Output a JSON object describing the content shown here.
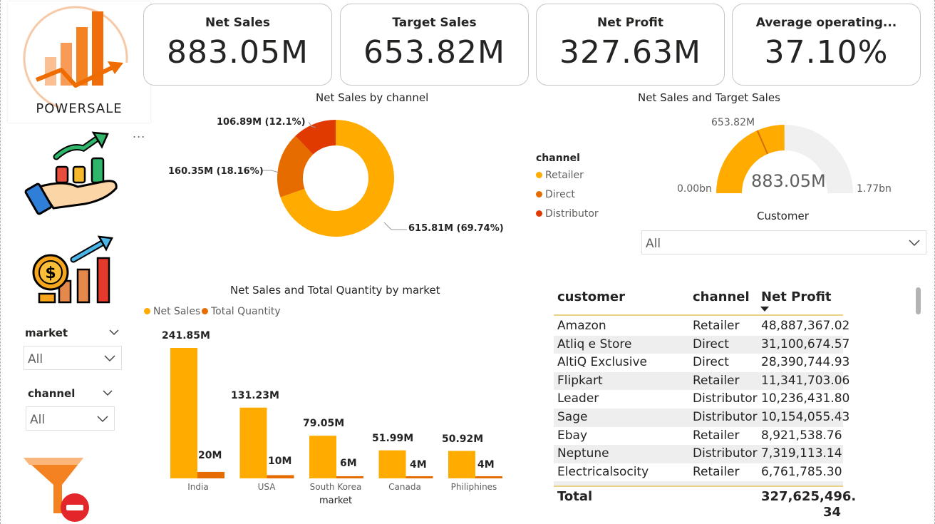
{
  "brand": {
    "name": "POWERSALE"
  },
  "kpis": [
    {
      "label": "Net Sales",
      "value": "883.05M"
    },
    {
      "label": "Target Sales",
      "value": "653.82M"
    },
    {
      "label": "Net Profit",
      "value": "327.63M"
    },
    {
      "label": "Average operating...",
      "value": "37.10%"
    }
  ],
  "menu": {
    "ellipsis": "..."
  },
  "donut": {
    "title": "Net Sales by channel",
    "labels": {
      "retailer": "615.81M (69.74%)",
      "direct": "160.35M (18.16%)",
      "distributor": "106.89M (12.1%)"
    }
  },
  "legend": {
    "title": "channel",
    "items": [
      "Retailer",
      "Direct",
      "Distributor"
    ]
  },
  "gauge": {
    "title": "Net Sales and Target Sales",
    "min_label": "0.00bn",
    "max_label": "1.77bn",
    "target_label": "653.82M",
    "value_label": "883.05M"
  },
  "customer_slicer": {
    "title": "Customer",
    "value": "All"
  },
  "market_slicer": {
    "title": "market",
    "value": "All"
  },
  "channel_slicer": {
    "title": "channel",
    "value": "All"
  },
  "bar_chart": {
    "title": "Net Sales and Total Quantity by market",
    "legend": [
      "Net Sales",
      "Total Quantity"
    ],
    "xlabel": "market",
    "sales_labels": [
      "241.85M",
      "131.23M",
      "79.05M",
      "51.99M",
      "50.92M"
    ],
    "qty_labels": [
      "20M",
      "10M",
      "6M",
      "4M",
      "4M"
    ]
  },
  "table": {
    "headers": {
      "customer": "customer",
      "channel": "channel",
      "profit": "Net Profit"
    },
    "rows": [
      {
        "customer": "Amazon",
        "channel": "Retailer",
        "profit": "48,887,367.02"
      },
      {
        "customer": "Atliq e Store",
        "channel": "Direct",
        "profit": "31,100,674.57"
      },
      {
        "customer": "AltiQ Exclusive",
        "channel": "Direct",
        "profit": "28,390,744.93"
      },
      {
        "customer": "Flipkart",
        "channel": "Retailer",
        "profit": "11,341,703.06"
      },
      {
        "customer": "Leader",
        "channel": "Distributor",
        "profit": "10,236,431.80"
      },
      {
        "customer": "Sage",
        "channel": "Distributor",
        "profit": "10,154,055.43"
      },
      {
        "customer": "Ebay",
        "channel": "Retailer",
        "profit": "8,921,538.76"
      },
      {
        "customer": "Neptune",
        "channel": "Distributor",
        "profit": "7,319,113.14"
      },
      {
        "customer": "Electricalsocity",
        "channel": "Retailer",
        "profit": "6,761,785.30"
      }
    ],
    "total_label": "Total",
    "total_value_line1": "327,625,496.",
    "total_value_line2": "34"
  },
  "colors": {
    "retailer": "#FFAB00",
    "direct": "#E66C00",
    "distributor": "#E03A00",
    "gauge_track": "#F0F0F0",
    "gauge_target": "#D46E00",
    "net_sales_bar": "#FFAB00",
    "quantity_bar": "#E66C00"
  },
  "chart_data": [
    {
      "type": "pie",
      "title": "Net Sales by channel",
      "categories": [
        "Retailer",
        "Direct",
        "Distributor"
      ],
      "values": [
        615.81,
        160.35,
        106.89
      ],
      "percent": [
        69.74,
        18.16,
        12.1
      ],
      "legend_position": "right"
    },
    {
      "type": "bar",
      "title": "Net Sales and Total Quantity by market",
      "categories": [
        "India",
        "USA",
        "South Korea",
        "Canada",
        "Philiphines"
      ],
      "series": [
        {
          "name": "Net Sales",
          "values": [
            241.85,
            131.23,
            79.05,
            51.99,
            50.92
          ]
        },
        {
          "name": "Total Quantity",
          "values": [
            20,
            10,
            6,
            4,
            4
          ]
        }
      ],
      "xlabel": "market",
      "ylabel": "",
      "grid": false,
      "legend_position": "top-left"
    }
  ],
  "gauge_data": {
    "min": 0,
    "max": 1770,
    "value": 883.05,
    "target": 653.82
  }
}
